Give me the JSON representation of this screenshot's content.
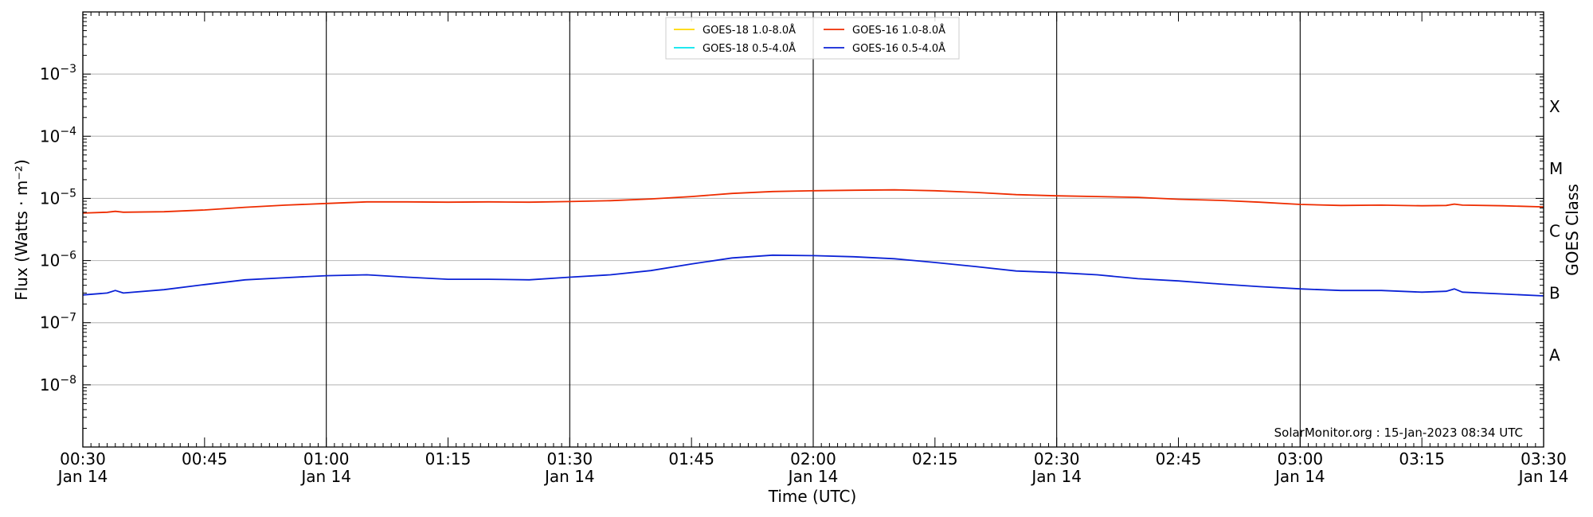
{
  "chart_data": {
    "type": "line",
    "xlabel": "Time (UTC)",
    "ylabel": "Flux (Watts · m⁻²)",
    "right_label": "GOES Class",
    "y_scale": "log",
    "ylim": [
      1e-09,
      0.01
    ],
    "xlim": [
      "2023-01-14 00:30",
      "2023-01-14 03:30"
    ],
    "grid": "horizontal at decades; vertical at each half hour",
    "legend_position": "top-center",
    "x_ticks": [
      {
        "value": "2023-01-14 00:30",
        "line1": "00:30",
        "line2": "Jan 14"
      },
      {
        "value": "2023-01-14 00:45",
        "line1": "00:45",
        "line2": ""
      },
      {
        "value": "2023-01-14 01:00",
        "line1": "01:00",
        "line2": "Jan 14"
      },
      {
        "value": "2023-01-14 01:15",
        "line1": "01:15",
        "line2": ""
      },
      {
        "value": "2023-01-14 01:30",
        "line1": "01:30",
        "line2": "Jan 14"
      },
      {
        "value": "2023-01-14 01:45",
        "line1": "01:45",
        "line2": ""
      },
      {
        "value": "2023-01-14 02:00",
        "line1": "02:00",
        "line2": "Jan 14"
      },
      {
        "value": "2023-01-14 02:15",
        "line1": "02:15",
        "line2": ""
      },
      {
        "value": "2023-01-14 02:30",
        "line1": "02:30",
        "line2": "Jan 14"
      },
      {
        "value": "2023-01-14 02:45",
        "line1": "02:45",
        "line2": ""
      },
      {
        "value": "2023-01-14 03:00",
        "line1": "03:00",
        "line2": "Jan 14"
      },
      {
        "value": "2023-01-14 03:15",
        "line1": "03:15",
        "line2": ""
      },
      {
        "value": "2023-01-14 03:30",
        "line1": "03:30",
        "line2": "Jan 14"
      }
    ],
    "y_ticks": [
      {
        "value": 1e-08,
        "base": "10",
        "exp": "−8"
      },
      {
        "value": 1e-07,
        "base": "10",
        "exp": "−7"
      },
      {
        "value": 1e-06,
        "base": "10",
        "exp": "−6"
      },
      {
        "value": 1e-05,
        "base": "10",
        "exp": "−5"
      },
      {
        "value": 0.0001,
        "base": "10",
        "exp": "−4"
      },
      {
        "value": 0.001,
        "base": "10",
        "exp": "−3"
      }
    ],
    "goes_classes": [
      {
        "label": "A",
        "value": 3e-08
      },
      {
        "label": "B",
        "value": 3e-07
      },
      {
        "label": "C",
        "value": 3e-06
      },
      {
        "label": "M",
        "value": 3e-05
      },
      {
        "label": "X",
        "value": 0.0003
      }
    ],
    "series": [
      {
        "name": "GOES-18 1.0-8.0Å",
        "color": "#ffd700",
        "x": [],
        "y": []
      },
      {
        "name": "GOES-18 0.5-4.0Å",
        "color": "#00e5ee",
        "x": [],
        "y": []
      },
      {
        "name": "GOES-16 1.0-8.0Å",
        "color": "#ee2c00",
        "x": [
          "2023-01-14 00:30",
          "2023-01-14 00:33",
          "2023-01-14 00:34",
          "2023-01-14 00:35",
          "2023-01-14 00:40",
          "2023-01-14 00:45",
          "2023-01-14 00:50",
          "2023-01-14 00:55",
          "2023-01-14 01:00",
          "2023-01-14 01:05",
          "2023-01-14 01:10",
          "2023-01-14 01:15",
          "2023-01-14 01:20",
          "2023-01-14 01:25",
          "2023-01-14 01:30",
          "2023-01-14 01:35",
          "2023-01-14 01:40",
          "2023-01-14 01:45",
          "2023-01-14 01:50",
          "2023-01-14 01:55",
          "2023-01-14 02:00",
          "2023-01-14 02:05",
          "2023-01-14 02:10",
          "2023-01-14 02:15",
          "2023-01-14 02:20",
          "2023-01-14 02:25",
          "2023-01-14 02:30",
          "2023-01-14 02:35",
          "2023-01-14 02:40",
          "2023-01-14 02:45",
          "2023-01-14 02:50",
          "2023-01-14 02:55",
          "2023-01-14 03:00",
          "2023-01-14 03:05",
          "2023-01-14 03:10",
          "2023-01-14 03:15",
          "2023-01-14 03:18",
          "2023-01-14 03:19",
          "2023-01-14 03:20",
          "2023-01-14 03:25",
          "2023-01-14 03:30"
        ],
        "y": [
          5.8e-06,
          6e-06,
          6.2e-06,
          6e-06,
          6.1e-06,
          6.5e-06,
          7.2e-06,
          7.8e-06,
          8.3e-06,
          8.8e-06,
          8.8e-06,
          8.7e-06,
          8.8e-06,
          8.7e-06,
          8.9e-06,
          9.2e-06,
          9.8e-06,
          1.07e-05,
          1.2e-05,
          1.29e-05,
          1.33e-05,
          1.35e-05,
          1.37e-05,
          1.33e-05,
          1.25e-05,
          1.15e-05,
          1.1e-05,
          1.07e-05,
          1.04e-05,
          9.7e-06,
          9.3e-06,
          8.7e-06,
          8e-06,
          7.7e-06,
          7.8e-06,
          7.6e-06,
          7.7e-06,
          8.1e-06,
          7.8e-06,
          7.6e-06,
          7.3e-06
        ]
      },
      {
        "name": "GOES-16 0.5-4.0Å",
        "color": "#0b22d6",
        "x": [
          "2023-01-14 00:30",
          "2023-01-14 00:33",
          "2023-01-14 00:34",
          "2023-01-14 00:35",
          "2023-01-14 00:40",
          "2023-01-14 00:45",
          "2023-01-14 00:50",
          "2023-01-14 00:55",
          "2023-01-14 01:00",
          "2023-01-14 01:05",
          "2023-01-14 01:10",
          "2023-01-14 01:15",
          "2023-01-14 01:20",
          "2023-01-14 01:25",
          "2023-01-14 01:30",
          "2023-01-14 01:35",
          "2023-01-14 01:40",
          "2023-01-14 01:45",
          "2023-01-14 01:50",
          "2023-01-14 01:55",
          "2023-01-14 02:00",
          "2023-01-14 02:05",
          "2023-01-14 02:10",
          "2023-01-14 02:15",
          "2023-01-14 02:20",
          "2023-01-14 02:25",
          "2023-01-14 02:30",
          "2023-01-14 02:35",
          "2023-01-14 02:40",
          "2023-01-14 02:45",
          "2023-01-14 02:50",
          "2023-01-14 02:55",
          "2023-01-14 03:00",
          "2023-01-14 03:05",
          "2023-01-14 03:10",
          "2023-01-14 03:15",
          "2023-01-14 03:18",
          "2023-01-14 03:19",
          "2023-01-14 03:20",
          "2023-01-14 03:25",
          "2023-01-14 03:30"
        ],
        "y": [
          2.8e-07,
          3e-07,
          3.3e-07,
          3e-07,
          3.4e-07,
          4.1e-07,
          4.9e-07,
          5.3e-07,
          5.7e-07,
          5.9e-07,
          5.4e-07,
          5e-07,
          5e-07,
          4.9e-07,
          5.4e-07,
          5.9e-07,
          6.9e-07,
          8.8e-07,
          1.1e-06,
          1.22e-06,
          1.2e-06,
          1.15e-06,
          1.07e-06,
          9.3e-07,
          8e-07,
          6.8e-07,
          6.4e-07,
          5.9e-07,
          5.1e-07,
          4.7e-07,
          4.2e-07,
          3.8e-07,
          3.5e-07,
          3.3e-07,
          3.3e-07,
          3.1e-07,
          3.2e-07,
          3.5e-07,
          3.1e-07,
          2.9e-07,
          2.7e-07
        ]
      }
    ]
  },
  "credit": "SolarMonitor.org : 15-Jan-2023 08:34 UTC"
}
